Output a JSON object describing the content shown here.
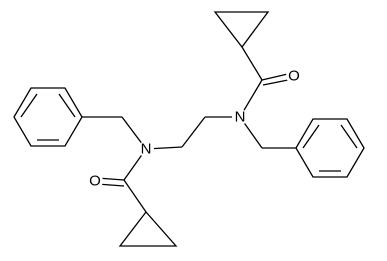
{
  "nodes": [
    {
      "label": "N"
    },
    {
      "label": "O"
    },
    {
      "label": "N"
    },
    {
      "label": "O"
    }
  ]
}
